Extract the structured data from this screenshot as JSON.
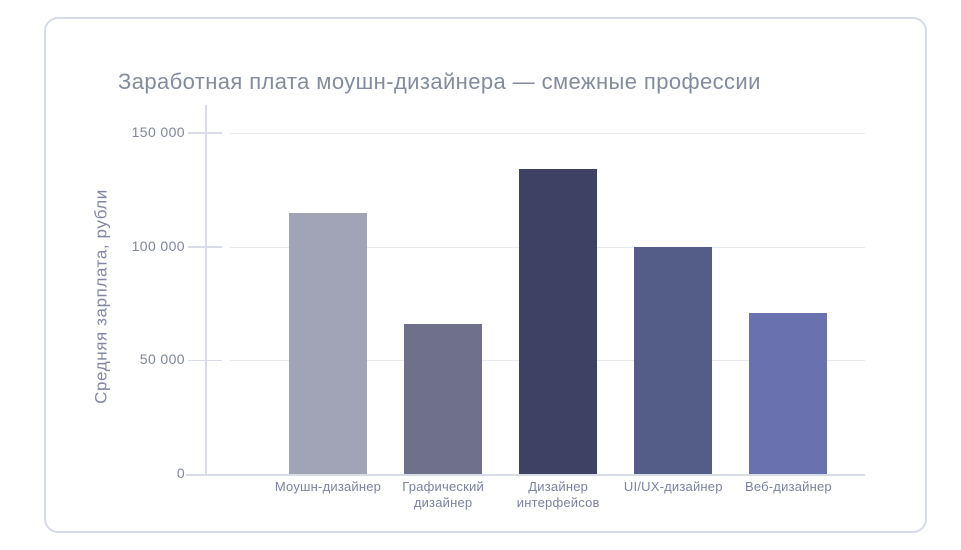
{
  "chart_data": {
    "type": "bar",
    "title": "Заработная плата моушн-дизайнера — смежные профессии",
    "ylabel": "Средняя зарплата, рубли",
    "xlabel": "",
    "categories": [
      "Моушн-дизайнер",
      "Графический дизайнер",
      "Дизайнер интерфейсов",
      "UI/UX-дизайнер",
      "Веб-дизайнер"
    ],
    "values": [
      115000,
      66000,
      134000,
      100000,
      71000
    ],
    "bar_colors": [
      "#a1a3b6",
      "#6e7189",
      "#3e4164",
      "#545c88",
      "#6972af"
    ],
    "ylim": [
      0,
      162000
    ],
    "yticks": [
      {
        "value": 0,
        "label": "0"
      },
      {
        "value": 50000,
        "label": "50 000"
      },
      {
        "value": 100000,
        "label": "100 000"
      },
      {
        "value": 150000,
        "label": "150 000"
      }
    ],
    "grid": "horizontal-only",
    "legend": "none"
  },
  "colors": {
    "background": "#ffffff",
    "card_border": "#d6dbe8",
    "title_text": "#838c9c",
    "ylabel_text": "#8086a4",
    "tick_label": "#7e8697",
    "category_label": "#7c82a0",
    "axis_line": "#d8dce6",
    "gridline": "#e7e9f0"
  }
}
